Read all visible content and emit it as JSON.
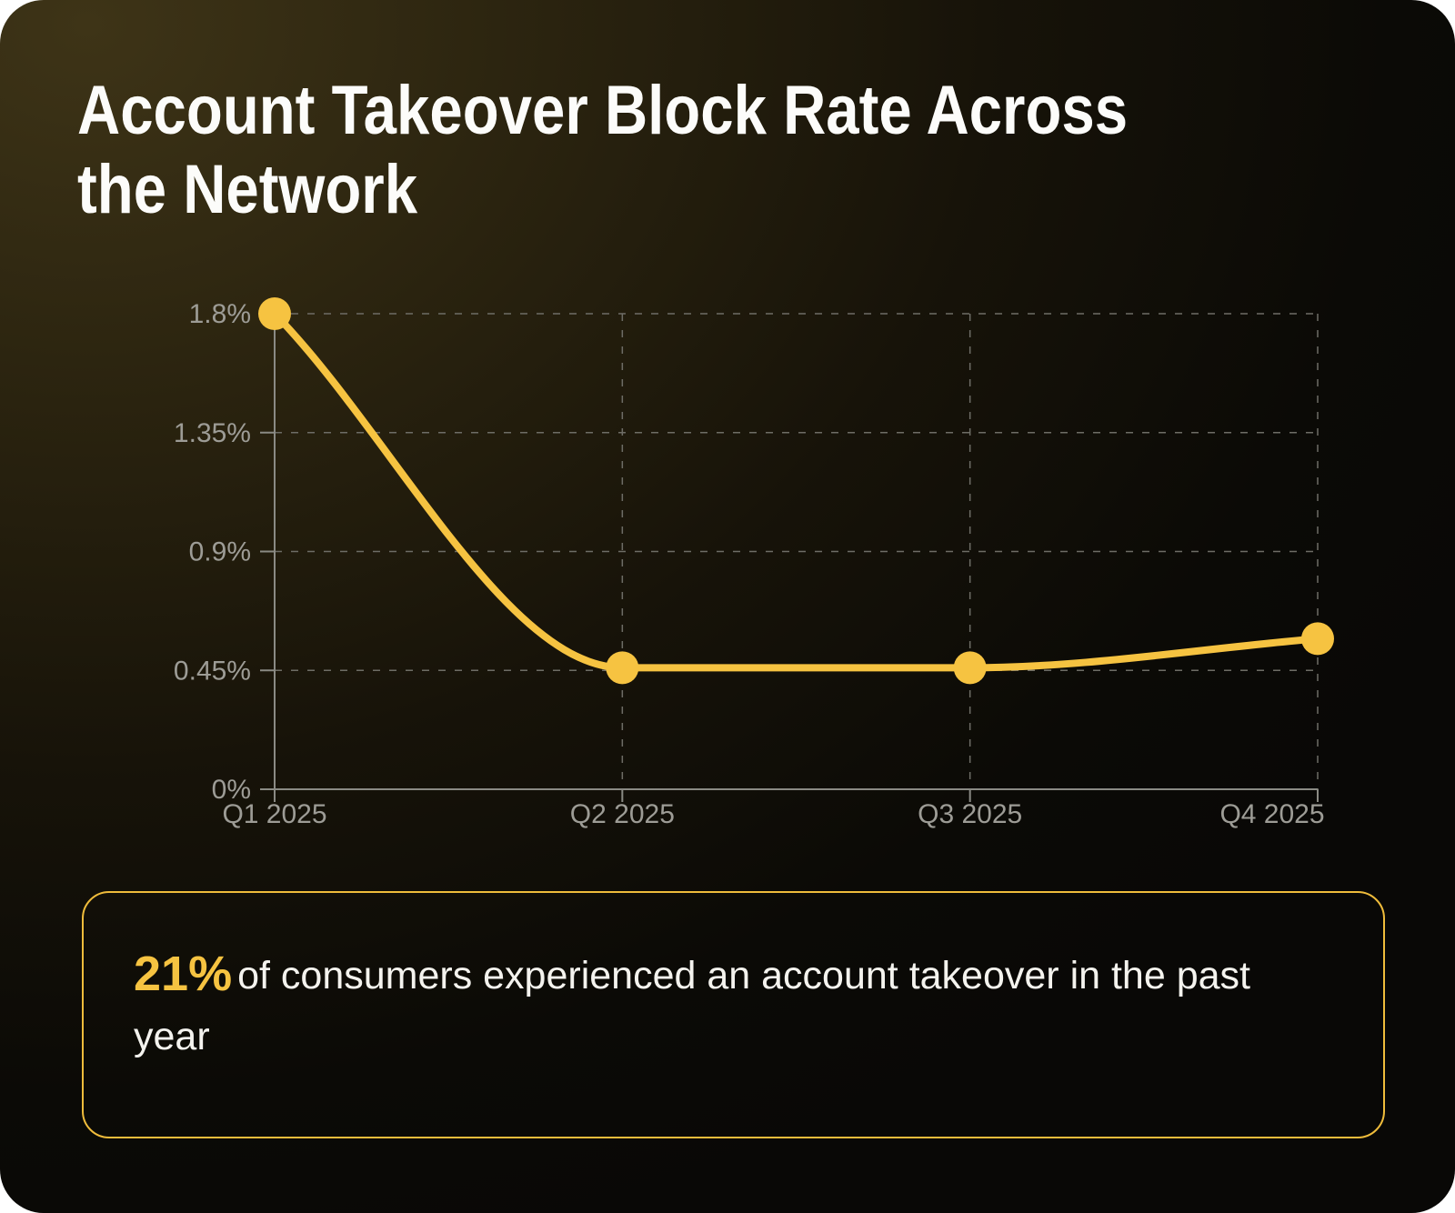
{
  "title": "Account Takeover Block Rate Across\nthe Network",
  "chart_data": {
    "type": "line",
    "title": "Account Takeover Block Rate Across the Network",
    "categories": [
      "Q1 2025",
      "Q2 2025",
      "Q3 2025",
      "Q4 2025"
    ],
    "series": [
      {
        "name": "Account takeover block rate",
        "values": [
          1.8,
          0.46,
          0.46,
          0.57
        ]
      }
    ],
    "xlabel": "",
    "ylabel": "",
    "ylim": [
      0,
      1.8
    ],
    "y_ticks": [
      0,
      0.45,
      0.9,
      1.35,
      1.8
    ],
    "y_tick_labels": [
      "0%",
      "0.45%",
      "0.9%",
      "1.35%",
      "1.8%"
    ],
    "grid": "dashed",
    "legend": "none",
    "colors": {
      "line": "#F6C341",
      "point": "#F6C341",
      "axis": "#8A8A84",
      "grid": "#6E6D66",
      "tick_label": "#9D9C96"
    }
  },
  "callout": {
    "stat": "21%",
    "text": "of consumers experienced an account takeover in the past year"
  }
}
